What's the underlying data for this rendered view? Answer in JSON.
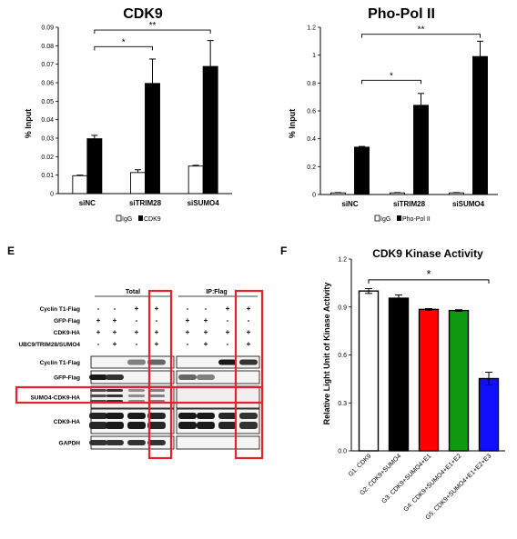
{
  "chart_data": [
    {
      "type": "bar",
      "title": "CDK9",
      "ylabel": "% Input",
      "xlabel": "",
      "categories": [
        "siNC",
        "siTRIM28",
        "siSUMO4"
      ],
      "series": [
        {
          "name": "IgG",
          "values": [
            0.0097,
            0.0114,
            0.0149
          ],
          "errors": [
            0.0003,
            0.0015,
            0.0004
          ],
          "color": "#ffffff"
        },
        {
          "name": "CDK9",
          "values": [
            0.0297,
            0.0596,
            0.0688
          ],
          "errors": [
            0.0018,
            0.0132,
            0.014
          ],
          "color": "#000000"
        }
      ],
      "ylim": [
        0,
        0.09
      ],
      "yticks": [
        "0",
        "0.01",
        "0.02",
        "0.03",
        "0.04",
        "0.05",
        "0.06",
        "0.07",
        "0.08",
        "0.09"
      ],
      "legend": "bottom",
      "grid": false,
      "annotations": [
        {
          "from": "siNC",
          "to": "siTRIM28",
          "text": "*",
          "y": 0.0795
        },
        {
          "from": "siNC",
          "to": "siSUMO4",
          "text": "**",
          "y": 0.0885
        }
      ]
    },
    {
      "type": "bar",
      "title": "Pho-Pol II",
      "ylabel": "% Input",
      "xlabel": "",
      "categories": [
        "siNC",
        "siTRIM28",
        "siSUMO4"
      ],
      "series": [
        {
          "name": "IgG",
          "values": [
            0.012,
            0.012,
            0.012
          ],
          "errors": [
            0.002,
            0.002,
            0.002
          ],
          "color": "#ffffff"
        },
        {
          "name": "Pho-Pol II",
          "values": [
            0.34,
            0.64,
            0.99
          ],
          "errors": [
            0.005,
            0.085,
            0.11
          ],
          "color": "#000000"
        }
      ],
      "ylim": [
        0,
        1.2
      ],
      "yticks": [
        "0",
        "0.2",
        "0.4",
        "0.6",
        "0.8",
        "1",
        "1.2"
      ],
      "legend": "bottom",
      "grid": false,
      "annotations": [
        {
          "from": "siNC",
          "to": "siTRIM28",
          "text": "*",
          "y": 0.82
        },
        {
          "from": "siNC",
          "to": "siSUMO4",
          "text": "**",
          "y": 1.15
        }
      ]
    },
    {
      "type": "bar",
      "title": "CDK9 Kinase Activity",
      "ylabel": "Relative Light Unit of Kinase Activity",
      "xlabel": "",
      "categories": [
        "G1: CDK9",
        "G2: CDK9+SUMO4",
        "G3: CDK9+SUMO4+E1",
        "G4: CDK9+SUMO4+E1+E2",
        "G5: CDK9+SUMO4+E1+E2+E3"
      ],
      "values": [
        1.0,
        0.955,
        0.885,
        0.878,
        0.452
      ],
      "errors": [
        0.015,
        0.02,
        0.005,
        0.005,
        0.04
      ],
      "colors": [
        "#ffffff",
        "#000000",
        "#ff0000",
        "#109a10",
        "#1010ff"
      ],
      "ylim": [
        0,
        1.2
      ],
      "yticks": [
        "0.0",
        "0.3",
        "0.6",
        "0.9",
        "1.2"
      ],
      "grid": false,
      "annotations": [
        {
          "from": "G1: CDK9",
          "to": "G5: CDK9+SUMO4+E1+E2+E3",
          "text": "*",
          "y": 1.07
        }
      ]
    }
  ],
  "panels": {
    "E": "E",
    "F": "F"
  },
  "blot": {
    "sections": [
      "Total",
      "IP:Flag"
    ],
    "condition_rows": [
      {
        "label": "Cyclin T1-Flag",
        "signs": [
          "-",
          "-",
          "+",
          "+",
          "-",
          "-",
          "+",
          "+"
        ]
      },
      {
        "label": "GFP-Flag",
        "signs": [
          "+",
          "+",
          "-",
          "-",
          "+",
          "+",
          "-",
          "-"
        ]
      },
      {
        "label": "CDK9-HA",
        "signs": [
          "+",
          "+",
          "+",
          "+",
          "+",
          "+",
          "+",
          "+"
        ]
      },
      {
        "label": "UBC9/TRIM28/SUMO4",
        "signs": [
          "-",
          "+",
          "-",
          "+",
          "-",
          "+",
          "-",
          "+"
        ]
      }
    ],
    "blot_rows": [
      "Cyclin T1-Flag",
      "GFP-Flag",
      "SUMO4-CDK9-HA",
      "CDK9-HA",
      "GAPDH"
    ],
    "highlight_color": "#e8202a"
  }
}
